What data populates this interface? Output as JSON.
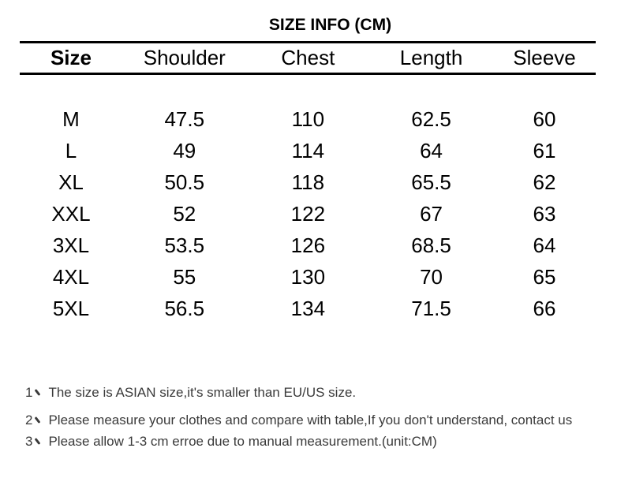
{
  "title": "SIZE INFO (CM)",
  "table": {
    "columns": [
      "Size",
      "Shoulder",
      "Chest",
      "Length",
      "Sleeve"
    ],
    "rows": [
      [
        "M",
        "47.5",
        "110",
        "62.5",
        "60"
      ],
      [
        "L",
        "49",
        "114",
        "64",
        "61"
      ],
      [
        "XL",
        "50.5",
        "118",
        "65.5",
        "62"
      ],
      [
        "XXL",
        "52",
        "122",
        "67",
        "63"
      ],
      [
        "3XL",
        "53.5",
        "126",
        "68.5",
        "64"
      ],
      [
        "4XL",
        "55",
        "130",
        "70",
        "65"
      ],
      [
        "5XL",
        "56.5",
        "134",
        "71.5",
        "66"
      ]
    ]
  },
  "notes": [
    {
      "num": "1",
      "separator": "、",
      "text": "The size is ASIAN size,it's smaller than EU/US size."
    },
    {
      "num": "2",
      "separator": "、",
      "text": "Please measure your clothes and compare with table,If you don't understand, contact us"
    },
    {
      "num": "3",
      "separator": "、",
      "text": "Please allow 1-3 cm erroe due to manual measurement.(unit:CM)"
    }
  ],
  "colors": {
    "background": "#ffffff",
    "table_text": "#000000",
    "rule": "#000000",
    "notes_text": "#3a3a3a"
  }
}
